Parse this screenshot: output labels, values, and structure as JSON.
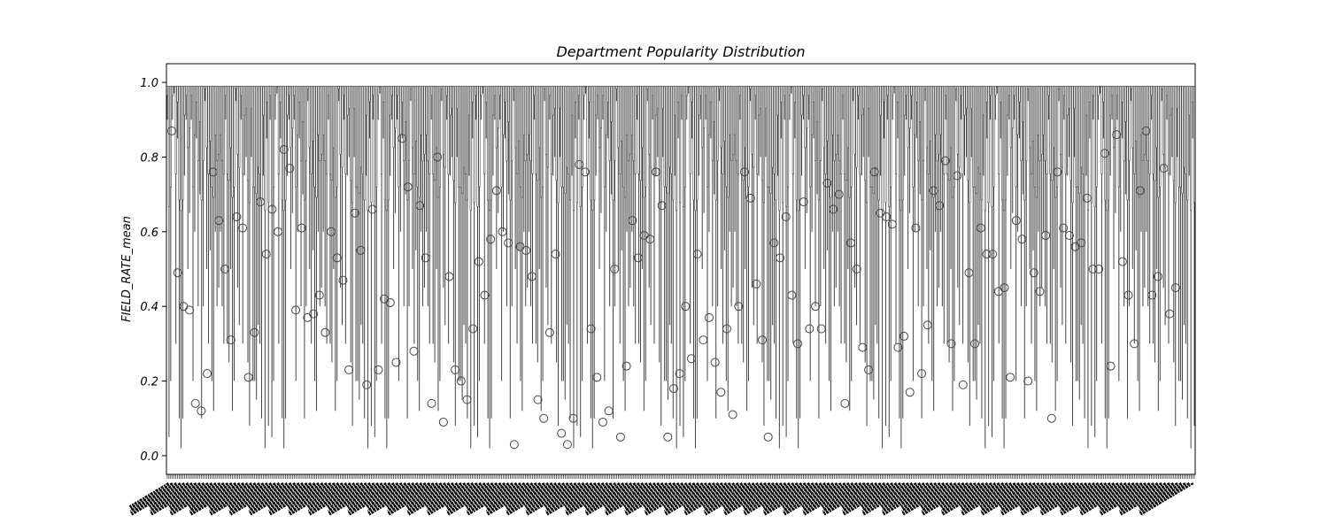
{
  "chart_data": {
    "type": "box",
    "title": "Department Popularity Distribution",
    "xlabel": "",
    "ylabel": "FIELD_RATE_mean",
    "ylim": [
      -0.05,
      1.05
    ],
    "yticks": [
      0.0,
      0.2,
      0.4,
      0.6,
      0.8,
      1.0
    ],
    "ytick_labels": [
      "0.0",
      "0.2",
      "0.4",
      "0.6",
      "0.8",
      "1.0"
    ],
    "grid": false,
    "legend": "none",
    "category_count": 600,
    "category_labels": "unreadable (dense rotated tick labels)",
    "box_color": "#ffffff",
    "line_color": "#444444",
    "whisker_low_samples": [
      0.9,
      0.95,
      0.3,
      0.1,
      0.85,
      0.6,
      0.2,
      0.05,
      0.5,
      0.9,
      0.75,
      0.1,
      0.4,
      0.95,
      0.2,
      0.65,
      0.3,
      0.8,
      0.02,
      0.7,
      0.45,
      0.15,
      0.9,
      0.55,
      0.25,
      0.85,
      0.1,
      0.6,
      0.35,
      0.97,
      0.2,
      0.5,
      0.08,
      0.75,
      0.4,
      0.9,
      0.3,
      0.6,
      0.12,
      0.8
    ],
    "outlier_samples": [
      0.87,
      0.49,
      0.4,
      0.39,
      0.14,
      0.12,
      0.22,
      0.76,
      0.63,
      0.5,
      0.31,
      0.64,
      0.61,
      0.21,
      0.33,
      0.68,
      0.54,
      0.66,
      0.6,
      0.82,
      0.77,
      0.39,
      0.61,
      0.37,
      0.38,
      0.43,
      0.33,
      0.6,
      0.53,
      0.47,
      0.23,
      0.65,
      0.55,
      0.19,
      0.66,
      0.23,
      0.42,
      0.41,
      0.25,
      0.85,
      0.72,
      0.28,
      0.67,
      0.53,
      0.14,
      0.8,
      0.09,
      0.48,
      0.23,
      0.2,
      0.15,
      0.34,
      0.52,
      0.43,
      0.58,
      0.71,
      0.6,
      0.57,
      0.03,
      0.56,
      0.55,
      0.48,
      0.15,
      0.1,
      0.33,
      0.54,
      0.06,
      0.03,
      0.1,
      0.78,
      0.76,
      0.34,
      0.21,
      0.09,
      0.12,
      0.5,
      0.05,
      0.24,
      0.63,
      0.53,
      0.59,
      0.58,
      0.76,
      0.67,
      0.05,
      0.18,
      0.22,
      0.4,
      0.26,
      0.54,
      0.31,
      0.37,
      0.25,
      0.17,
      0.34,
      0.11,
      0.4,
      0.76,
      0.69,
      0.46,
      0.31,
      0.05,
      0.57,
      0.53,
      0.64,
      0.43,
      0.3,
      0.68,
      0.34,
      0.4,
      0.34,
      0.73,
      0.66,
      0.7,
      0.14,
      0.57,
      0.5,
      0.29,
      0.23,
      0.76,
      0.65,
      0.64,
      0.62,
      0.29,
      0.32,
      0.17,
      0.61,
      0.22,
      0.35,
      0.71,
      0.67,
      0.79,
      0.3,
      0.75,
      0.19,
      0.49,
      0.3,
      0.61,
      0.54,
      0.54,
      0.44,
      0.45,
      0.21,
      0.63,
      0.58,
      0.2,
      0.49,
      0.44,
      0.59,
      0.1,
      0.76,
      0.61,
      0.59,
      0.56,
      0.57,
      0.69,
      0.5,
      0.5,
      0.81,
      0.24,
      0.86,
      0.52,
      0.43,
      0.3,
      0.71,
      0.87,
      0.43,
      0.48,
      0.77,
      0.38,
      0.45
    ]
  }
}
